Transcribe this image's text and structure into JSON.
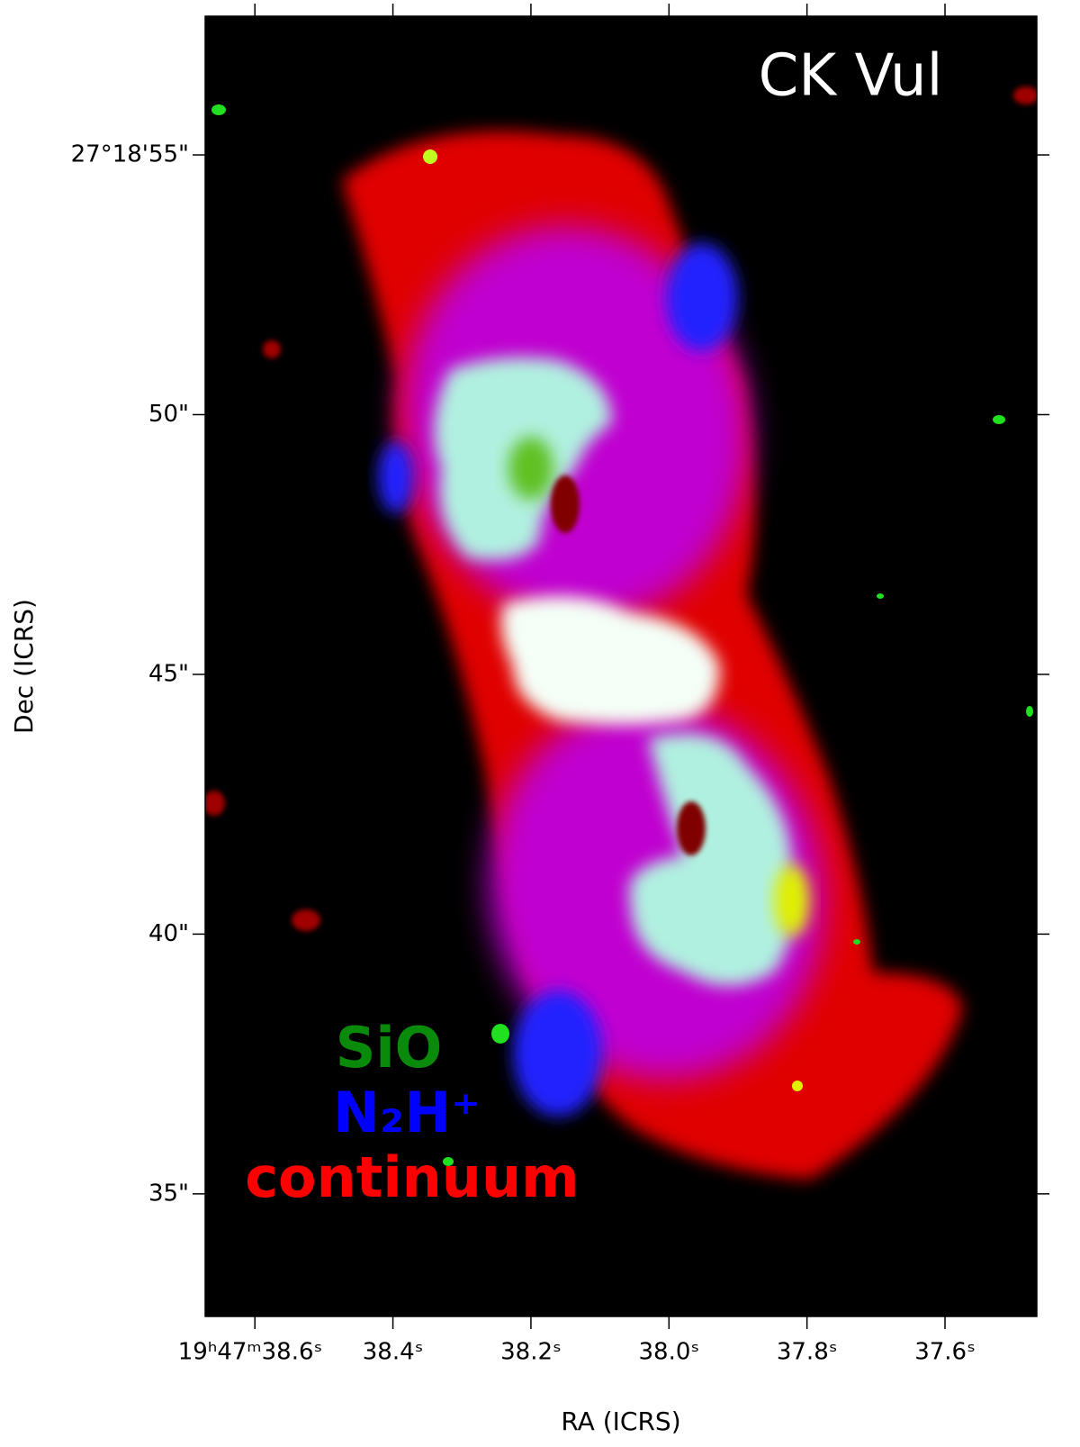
{
  "chart_data": {
    "type": "image",
    "title": "CK Vul",
    "x_label": "RA (ICRS)",
    "y_label": "Dec (ICRS)",
    "series": [
      {
        "name": "SiO",
        "color": "#0a8a0a"
      },
      {
        "name": "N₂H⁺",
        "color": "#0000ff"
      },
      {
        "name": "continuum",
        "color": "#ff0000"
      }
    ],
    "xlim": [
      38.672,
      37.467
    ],
    "ylim": [
      32.64,
      57.67
    ],
    "xticks": [
      {
        "value": 38.6,
        "label": "19ʰ47ᵐ38.6ˢ"
      },
      {
        "value": 38.4,
        "label": "38.4ˢ"
      },
      {
        "value": 38.2,
        "label": "38.2ˢ"
      },
      {
        "value": 38.0,
        "label": "38.0ˢ"
      },
      {
        "value": 37.8,
        "label": "37.8ˢ"
      },
      {
        "value": 37.6,
        "label": "37.6ˢ"
      }
    ],
    "yticks": [
      {
        "value": 55,
        "label": "27°18'55\""
      },
      {
        "value": 50,
        "label": "50\""
      },
      {
        "value": 45,
        "label": "45\""
      },
      {
        "value": 40,
        "label": "40\""
      },
      {
        "value": 35,
        "label": "35\""
      }
    ]
  }
}
